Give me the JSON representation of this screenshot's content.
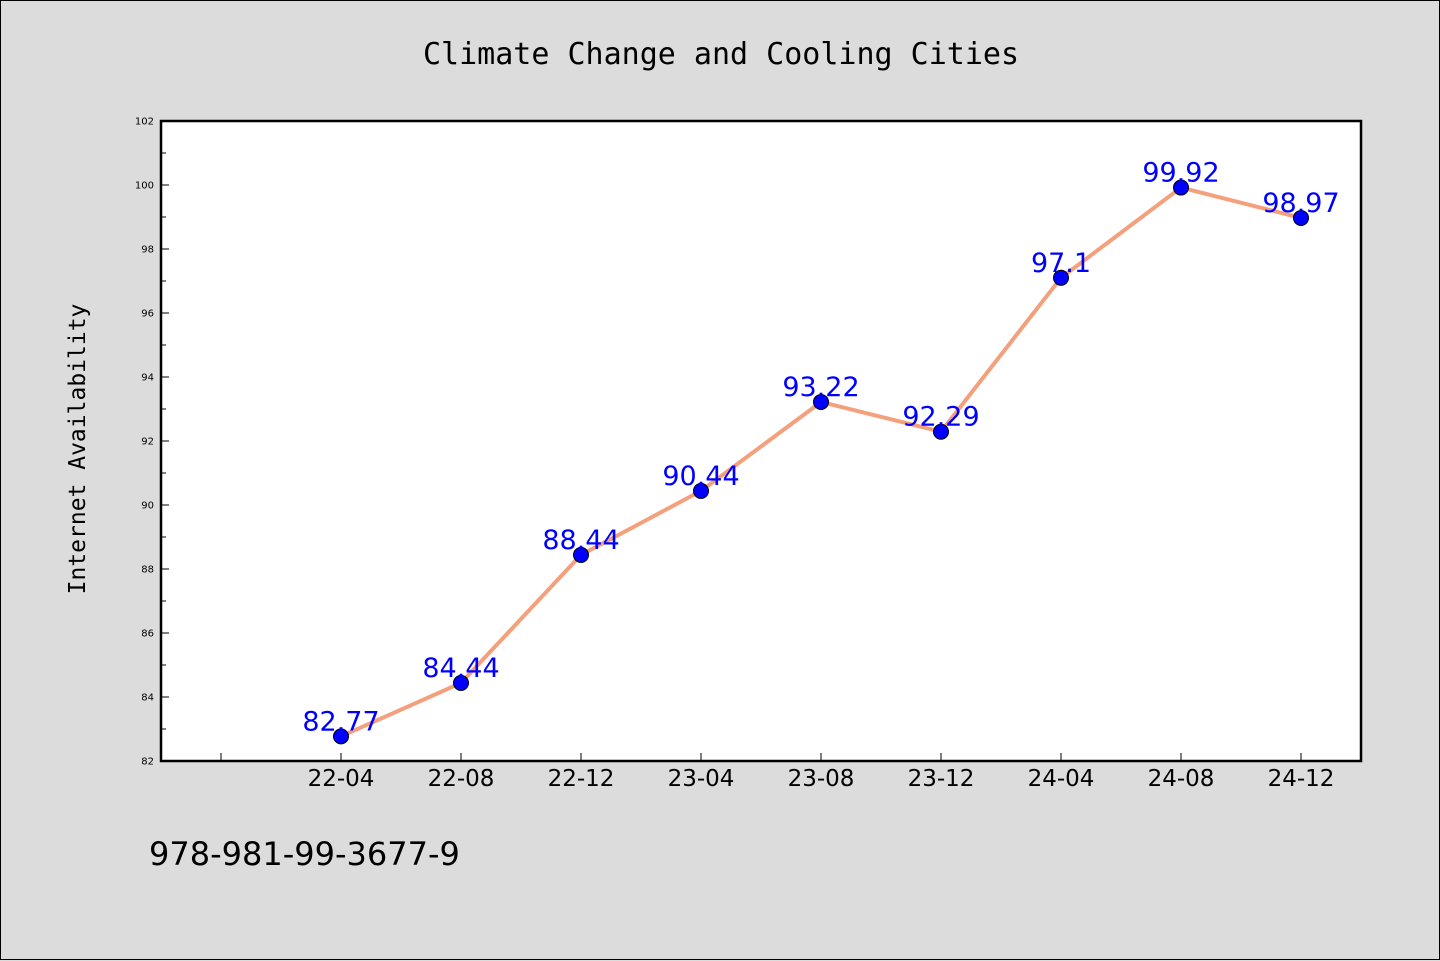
{
  "chart_data": {
    "type": "line",
    "title": "Climate Change and Cooling Cities",
    "xlabel": "",
    "ylabel": "Internet Availability",
    "categories": [
      "22-04",
      "22-08",
      "22-12",
      "23-04",
      "23-08",
      "23-12",
      "24-04",
      "24-08",
      "24-12"
    ],
    "values": [
      82.77,
      84.44,
      88.44,
      90.44,
      93.22,
      92.29,
      97.1,
      99.92,
      98.97
    ],
    "data_labels": [
      "82.77",
      "84.44",
      "88.44",
      "90.44",
      "93.22",
      "92.29",
      "97.1",
      "99.92",
      "98.97"
    ],
    "ylim": [
      82,
      102
    ],
    "yticks": [
      82,
      84,
      86,
      88,
      90,
      92,
      94,
      96,
      98,
      100,
      102
    ],
    "grid": false,
    "line_color": "#f4a07c",
    "marker_color": "#0000ff",
    "label_color": "#0000ff"
  },
  "footer": {
    "isbn": "978-981-99-3677-9"
  }
}
